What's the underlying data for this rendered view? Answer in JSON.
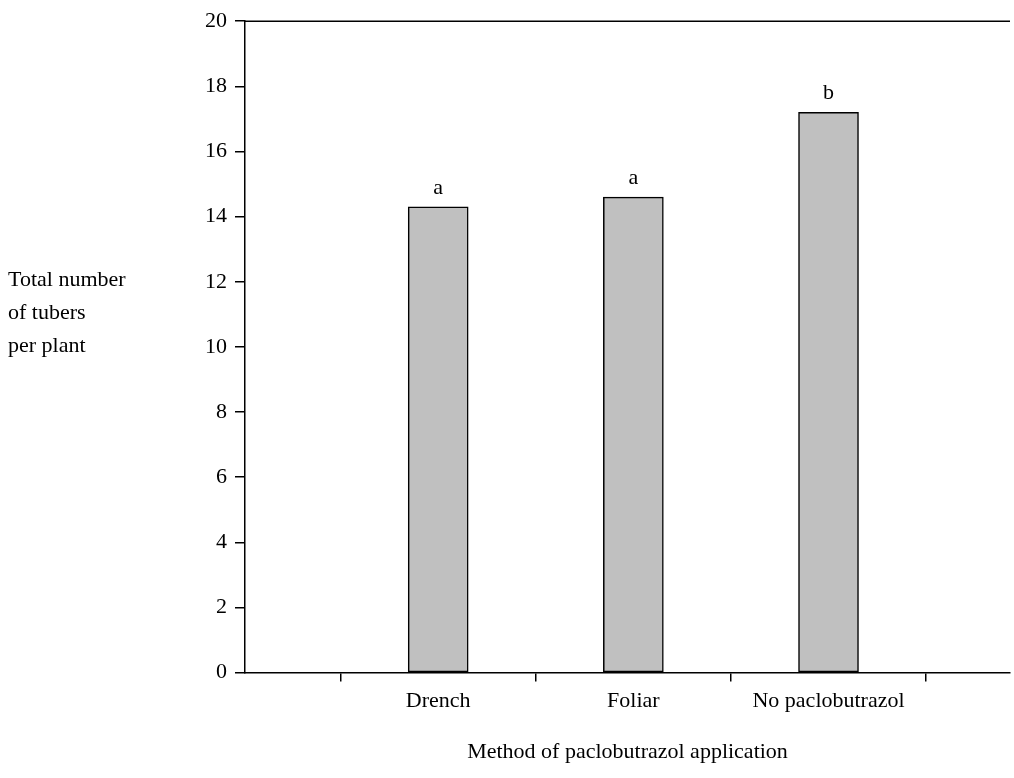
{
  "chart_data": {
    "type": "bar",
    "xlabel": "Method of paclobutrazol application",
    "ylabel": "Total number\nof tubers\nper plant",
    "categories": [
      "Drench",
      "Foliar",
      "No paclobutrazol"
    ],
    "values": [
      14.3,
      14.6,
      17.2
    ],
    "color": "#c0c0c0",
    "ylim": [
      0,
      20
    ],
    "yticks": [
      0,
      2,
      4,
      6,
      8,
      10,
      12,
      14,
      16,
      18,
      20
    ],
    "grid": false,
    "legend": false,
    "annotations": [
      {
        "text": "a",
        "x": "Drench",
        "y": 14.3
      },
      {
        "text": "a",
        "x": "Foliar",
        "y": 14.6
      },
      {
        "text": "b",
        "x": "No paclobutrazol",
        "y": 17.2
      }
    ]
  }
}
